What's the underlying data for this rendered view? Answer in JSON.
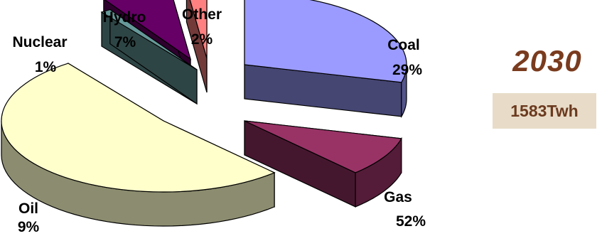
{
  "chart_data": {
    "type": "pie",
    "year": "2030",
    "total": "1583Twh",
    "slices": [
      {
        "label": "Coal",
        "pct": "29%",
        "value": 29,
        "color": "#9b9bff"
      },
      {
        "label": "Oil",
        "pct": "9%",
        "value": 9,
        "color": "#993366"
      },
      {
        "label": "Gas",
        "pct": "52%",
        "value": 52,
        "color": "#ffffcc"
      },
      {
        "label": "Nuclear",
        "pct": "1%",
        "value": 1,
        "color": "#669999"
      },
      {
        "label": "Hydro",
        "pct": "7%",
        "value": 7,
        "color": "#660066"
      },
      {
        "label": "Other",
        "pct": "2%",
        "value": 2,
        "color": "#ff8080"
      }
    ]
  }
}
